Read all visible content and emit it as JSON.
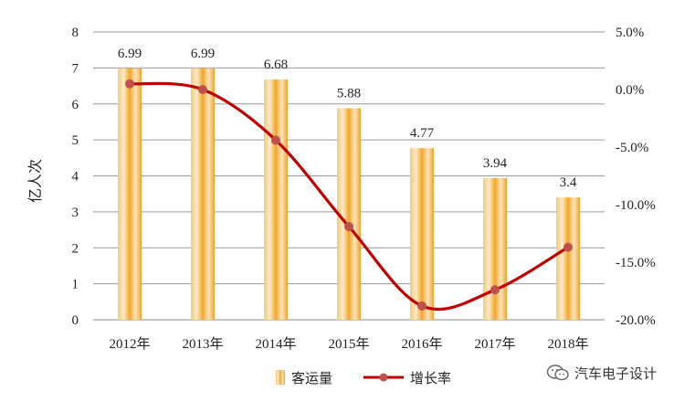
{
  "chart_data": {
    "type": "bar+line",
    "categories": [
      "2012年",
      "2013年",
      "2014年",
      "2015年",
      "2016年",
      "2017年",
      "2018年"
    ],
    "series": [
      {
        "name": "客运量",
        "type": "bar",
        "axis": "left",
        "values": [
          6.99,
          6.99,
          6.68,
          5.88,
          4.77,
          3.94,
          3.4
        ],
        "labels": [
          "6.99",
          "6.99",
          "6.68",
          "5.88",
          "4.77",
          "3.94",
          "3.4"
        ],
        "color": "#F2A93B"
      },
      {
        "name": "增长率",
        "type": "line",
        "axis": "right",
        "values": [
          0.5,
          0.0,
          -4.4,
          -11.9,
          -18.8,
          -17.4,
          -13.7
        ],
        "color": "#C00000",
        "marker_color": "#C0504D"
      }
    ],
    "y_left": {
      "label": "亿人次",
      "range": [
        0,
        8
      ],
      "ticks": [
        "0",
        "1",
        "2",
        "3",
        "4",
        "5",
        "6",
        "7",
        "8"
      ]
    },
    "y_right": {
      "range": [
        -20,
        5
      ],
      "ticks": [
        "5.0%",
        "0.0%",
        "-5.0%",
        "-10.0%",
        "-15.0%",
        "-20.0%"
      ],
      "tick_values": [
        5,
        0,
        -5,
        -10,
        -15,
        -20
      ]
    },
    "grid": true,
    "legend_position": "bottom"
  },
  "watermark": {
    "text": "汽车电子设计",
    "icon": "wechat-icon"
  }
}
